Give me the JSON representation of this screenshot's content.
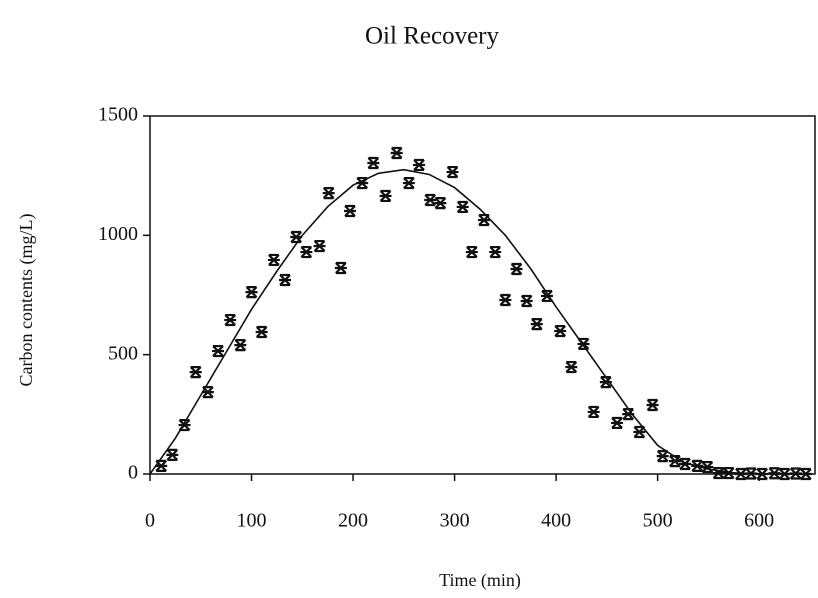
{
  "chart_data": {
    "type": "scatter",
    "title": "Oil Recovery",
    "xlabel": "Time (min)",
    "ylabel": "Carbon contents (mg/L)",
    "xlim": [
      0,
      655
    ],
    "ylim": [
      0,
      1500
    ],
    "xticks": [
      0,
      100,
      200,
      300,
      400,
      500,
      600
    ],
    "yticks": [
      0,
      500,
      1000,
      1500
    ],
    "series": [
      {
        "type": "scatter",
        "color": "#111111",
        "x": [
          11,
          22,
          34,
          45,
          57,
          67,
          79,
          89,
          100,
          110,
          122,
          133,
          144,
          154,
          167,
          176,
          188,
          197,
          209,
          220,
          232,
          243,
          255,
          265,
          276,
          286,
          298,
          308,
          317,
          329,
          340,
          350,
          361,
          371,
          381,
          391,
          404,
          415,
          427,
          437,
          449,
          460,
          471,
          482,
          495,
          505,
          517,
          527,
          539,
          549,
          560,
          570,
          582,
          592,
          603,
          615,
          625,
          636,
          646
        ],
        "values": [
          34,
          80,
          205,
          427,
          343,
          515,
          645,
          540,
          762,
          595,
          897,
          813,
          993,
          930,
          955,
          1177,
          863,
          1102,
          1219,
          1303,
          1165,
          1345,
          1219,
          1295,
          1148,
          1135,
          1265,
          1119,
          930,
          1064,
          930,
          729,
          859,
          725,
          628,
          746,
          599,
          448,
          545,
          260,
          385,
          214,
          251,
          176,
          289,
          75,
          54,
          42,
          34,
          29,
          4,
          4,
          0,
          2,
          0,
          3,
          0,
          2,
          0
        ]
      },
      {
        "type": "line",
        "color": "#111111",
        "x": [
          0,
          25,
          50,
          75,
          100,
          125,
          150,
          175,
          200,
          225,
          250,
          275,
          300,
          325,
          350,
          375,
          400,
          425,
          450,
          475,
          500,
          525,
          550,
          575,
          600,
          625,
          650
        ],
        "values": [
          0,
          150,
          330,
          510,
          690,
          850,
          1000,
          1120,
          1210,
          1260,
          1275,
          1255,
          1200,
          1110,
          1000,
          860,
          700,
          550,
          400,
          250,
          120,
          50,
          20,
          5,
          0,
          0,
          0
        ]
      }
    ]
  }
}
